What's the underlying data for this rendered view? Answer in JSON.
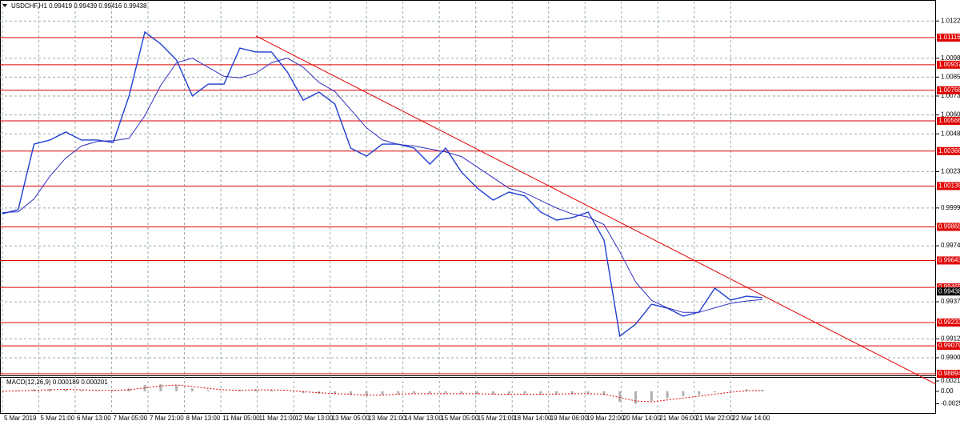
{
  "chart_data": [
    {
      "type": "line",
      "title": "USDCHF,H1 0.99419 0.99439 0.99416 0.99438",
      "xlim": [
        -0.15,
        58.97
      ],
      "ylim": [
        0.98889,
        1.01354
      ],
      "xticks": [
        {
          "value": 0,
          "label": "5 Mar 2019"
        },
        {
          "value": 2.3,
          "label": "5 Mar 21:00"
        },
        {
          "value": 4.6,
          "label": "6 Mar 13:00"
        },
        {
          "value": 6.9,
          "label": "7 Mar 05:00"
        },
        {
          "value": 9.2,
          "label": "7 Mar 21:00"
        },
        {
          "value": 11.5,
          "label": "8 Mar 13:00"
        },
        {
          "value": 13.8,
          "label": "11 Mar 05:00"
        },
        {
          "value": 16.1,
          "label": "11 Mar 21:00"
        },
        {
          "value": 18.4,
          "label": "12 Mar 13:00"
        },
        {
          "value": 20.7,
          "label": "13 Mar 05:00"
        },
        {
          "value": 23.0,
          "label": "13 Mar 21:00"
        },
        {
          "value": 25.3,
          "label": "14 Mar 13:00"
        },
        {
          "value": 27.6,
          "label": "15 Mar 05:00"
        },
        {
          "value": 29.9,
          "label": "15 Mar 21:00"
        },
        {
          "value": 32.2,
          "label": "18 Mar 14:00"
        },
        {
          "value": 34.5,
          "label": "19 Mar 06:00"
        },
        {
          "value": 36.8,
          "label": "19 Mar 22:00"
        },
        {
          "value": 39.1,
          "label": "20 Mar 14:00"
        },
        {
          "value": 41.4,
          "label": "21 Mar 06:00"
        },
        {
          "value": 43.7,
          "label": "21 Mar 22:00"
        },
        {
          "value": 46.0,
          "label": "22 Mar 14:00"
        }
      ],
      "yticks": [
        {
          "value": 1.01226,
          "label": "1.01226"
        },
        {
          "value": 1.0098,
          "label": "1.00980"
        },
        {
          "value": 1.00855,
          "label": "1.00855"
        },
        {
          "value": 1.0073,
          "label": "1.00730"
        },
        {
          "value": 1.00605,
          "label": "1.00605"
        },
        {
          "value": 1.0048,
          "label": "1.00480"
        },
        {
          "value": 1.0023,
          "label": "1.00230"
        },
        {
          "value": 0.9999,
          "label": "0.99990"
        },
        {
          "value": 0.9974,
          "label": "0.99740"
        },
        {
          "value": 0.9937,
          "label": "0.99370"
        },
        {
          "value": 0.99125,
          "label": "0.99125"
        },
        {
          "value": 0.99,
          "label": "0.99000"
        }
      ],
      "grid": true,
      "series": [
        {
          "color": "#1f3fd1",
          "values": [
            0.99952,
            0.99979,
            1.00412,
            1.00439,
            1.00492,
            1.00439,
            1.00439,
            1.00423,
            1.0073,
            1.01153,
            1.01074,
            1.00968,
            1.0073,
            1.00809,
            1.00809,
            1.01047,
            1.01021,
            1.01021,
            1.00889,
            1.00703,
            1.00756,
            1.00677,
            1.00386,
            1.00333,
            1.00412,
            1.00412,
            1.00386,
            1.0028,
            1.00386,
            1.00227,
            1.00121,
            1.00042,
            1.00095,
            1.00069,
            0.99963,
            0.9991,
            0.99926,
            0.99963,
            0.99778,
            0.99143,
            0.99222,
            0.99354,
            0.99328,
            0.99275,
            0.99302,
            0.9946,
            0.99381,
            0.99407,
            0.99397
          ]
        },
        {
          "color": "#3030c0",
          "values": [
            0.9996,
            0.99965,
            1.0005,
            1.002,
            1.0032,
            1.004,
            1.0043,
            1.00435,
            1.0045,
            1.006,
            1.008,
            1.0095,
            1.0098,
            1.0092,
            1.0086,
            1.0085,
            1.0088,
            1.0095,
            1.0098,
            1.0092,
            1.0082,
            1.0076,
            1.0064,
            1.0052,
            1.0044,
            1.0041,
            1.004,
            1.0038,
            1.0036,
            1.0033,
            1.0026,
            1.0019,
            1.0012,
            1.0009,
            1.0004,
            0.9999,
            0.9995,
            0.9993,
            0.9988,
            0.997,
            0.995,
            0.9938,
            0.9933,
            0.993,
            0.993,
            0.9933,
            0.9936,
            0.99375,
            0.99385
          ]
        }
      ],
      "levels": [
        1.01116,
        1.00937,
        1.00768,
        1.00566,
        1.00366,
        1.00135,
        0.99865,
        0.99643,
        0.99465,
        0.99233,
        0.99079,
        0.98894
      ],
      "level_color": "#e00000",
      "current_price": 0.99438,
      "trendline": {
        "start": [
          16.02,
          1.01127
        ],
        "end": [
          58.97,
          0.98825
        ],
        "color": "#e00000"
      }
    },
    {
      "type": "bar",
      "title": "MACD(12,26,9) 0.000189 0.000201",
      "xlim": [
        -0.15,
        58.97
      ],
      "ylim": [
        -0.0045,
        0.0028
      ],
      "yticks": [
        0.002136,
        {
          "value": 0,
          "label": "0.00"
        },
        -0.00259
      ],
      "color": "#b0b0b0",
      "values": [
        0,
        0.0002,
        0.0004,
        0.0005,
        0.0004,
        0.0002,
        0.0001,
        0.0001,
        0.0006,
        0.0013,
        0.0015,
        0.0012,
        0.0006,
        0.0002,
        0,
        0.0003,
        0.0004,
        0.0003,
        0,
        -0.0004,
        -0.0005,
        -0.0006,
        -0.0008,
        -0.0009,
        -0.0007,
        -0.0005,
        -0.0004,
        -0.0005,
        -0.0004,
        -0.0005,
        -0.0006,
        -0.0007,
        -0.0006,
        -0.0005,
        -0.0006,
        -0.0006,
        -0.0005,
        -0.0004,
        -0.0008,
        -0.0022,
        -0.0026,
        -0.002,
        -0.0014,
        -0.001,
        -0.0007,
        -0.0002,
        0.0002,
        0.0004,
        0.0003
      ],
      "signal": {
        "color": "#e00000",
        "values": [
          0,
          0.0001,
          0.0002,
          0.0003,
          0.0004,
          0.0003,
          0.0002,
          0.0002,
          0.0003,
          0.0007,
          0.0011,
          0.0013,
          0.001,
          0.0006,
          0.0003,
          0.0002,
          0.0003,
          0.0003,
          0.0002,
          -0.0001,
          -0.0003,
          -0.0005,
          -0.0006,
          -0.0008,
          -0.0008,
          -0.0006,
          -0.0005,
          -0.0005,
          -0.0005,
          -0.0005,
          -0.0005,
          -0.0006,
          -0.0006,
          -0.0006,
          -0.0006,
          -0.0006,
          -0.0005,
          -0.0005,
          -0.0006,
          -0.0013,
          -0.002,
          -0.0022,
          -0.0018,
          -0.0014,
          -0.001,
          -0.0006,
          -0.0002,
          0.0001,
          0.0002
        ]
      }
    }
  ]
}
